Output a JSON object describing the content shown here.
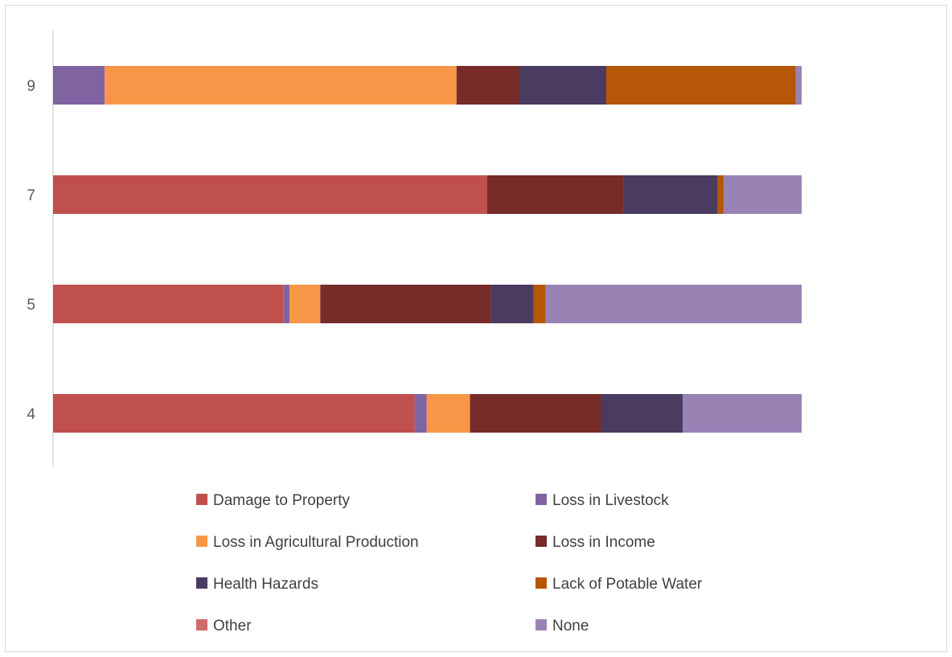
{
  "chart_data": {
    "type": "bar",
    "orientation": "horizontal",
    "stacked": "percent",
    "title": "",
    "xlabel": "",
    "ylabel": "",
    "categories": [
      "9",
      "7",
      "5",
      "4"
    ],
    "xlim": [
      0,
      100
    ],
    "grid": false,
    "legend_position": "bottom",
    "series": [
      {
        "name": "Damage to Property",
        "color": "#c0504d",
        "values": [
          0,
          58.0,
          30.8,
          48.3
        ]
      },
      {
        "name": "Loss in Livestock",
        "color": "#8064a2",
        "values": [
          6.9,
          0,
          0.8,
          1.6
        ]
      },
      {
        "name": "Loss in Agricultural Production",
        "color": "#f79646",
        "values": [
          47.0,
          0,
          4.1,
          5.8
        ]
      },
      {
        "name": "Loss in Income",
        "color": "#772c2a",
        "values": [
          8.4,
          18.2,
          22.8,
          17.5
        ]
      },
      {
        "name": "Health Hazards",
        "color": "#4a3b60",
        "values": [
          11.6,
          12.6,
          5.7,
          10.9
        ]
      },
      {
        "name": "Lack of Potable Water",
        "color": "#b65708",
        "values": [
          25.3,
          0.8,
          1.6,
          0
        ]
      },
      {
        "name": "Other",
        "color": "#d16b6b",
        "values": [
          0,
          0,
          0,
          0
        ]
      },
      {
        "name": "None",
        "color": "#9983b5",
        "values": [
          0.8,
          10.4,
          34.2,
          15.9
        ]
      }
    ]
  }
}
